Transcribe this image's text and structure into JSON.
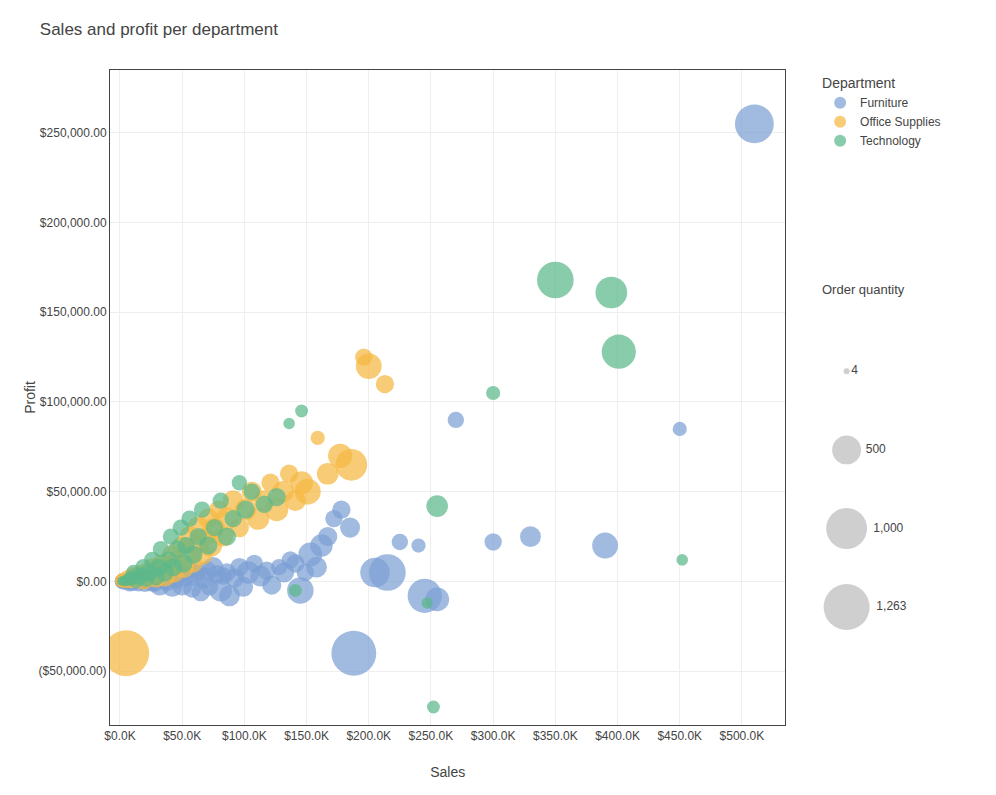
{
  "chart_data": {
    "type": "scatter",
    "title": "Sales and profit per department",
    "x_label": "Sales",
    "y_label": "Profit",
    "grid": true,
    "legend": "right",
    "legend_title": "Department",
    "xlim": [
      -8000,
      535000
    ],
    "ylim": [
      -80000,
      285000
    ],
    "xticks": [
      {
        "value": 0,
        "label": "$0.0K"
      },
      {
        "value": 50000,
        "label": "$50.0K"
      },
      {
        "value": 100000,
        "label": "$100.0K"
      },
      {
        "value": 150000,
        "label": "$150.0K"
      },
      {
        "value": 200000,
        "label": "$200.0K"
      },
      {
        "value": 250000,
        "label": "$250.0K"
      },
      {
        "value": 300000,
        "label": "$300.0K"
      },
      {
        "value": 350000,
        "label": "$350.0K"
      },
      {
        "value": 400000,
        "label": "$400.0K"
      },
      {
        "value": 450000,
        "label": "$450.0K"
      },
      {
        "value": 500000,
        "label": "$500.0K"
      }
    ],
    "yticks": [
      {
        "value": -50000,
        "label": "($50,000.00)"
      },
      {
        "value": 0,
        "label": "$0.00"
      },
      {
        "value": 50000,
        "label": "$50,000.00"
      },
      {
        "value": 100000,
        "label": "$100,000.00"
      },
      {
        "value": 150000,
        "label": "$150,000.00"
      },
      {
        "value": 200000,
        "label": "$200,000.00"
      },
      {
        "value": 250000,
        "label": "$250,000.00"
      }
    ],
    "size_legend": {
      "title": "Order quantity",
      "values": [
        4,
        500,
        {
          "value": 1000,
          "label": "1,000"
        },
        {
          "value": 1263,
          "label": "1,263"
        }
      ]
    },
    "series": [
      {
        "name": "Furniture",
        "color": "#7b9fd4",
        "x": [
          510000,
          450000,
          390000,
          330000,
          300000,
          270000,
          255000,
          245000,
          240000,
          225000,
          215000,
          205000,
          188000,
          185000,
          178000,
          172000,
          167000,
          162000,
          158000,
          153000,
          149000,
          145000,
          141000,
          137000,
          132000,
          128000,
          122000,
          118000,
          113000,
          108000,
          103000,
          99000,
          96000,
          92000,
          88000,
          86000,
          83000,
          81000,
          78000,
          75000,
          72000,
          70000,
          68000,
          65000,
          62000,
          60000,
          58000,
          55000,
          52000,
          50000,
          48000,
          45000,
          42000,
          40000,
          38000,
          35000,
          32000,
          30000,
          28000,
          25000,
          22000,
          20000,
          18000,
          15000,
          12000,
          10000,
          8000,
          6000,
          4000,
          2500,
          1500,
          1000,
          500
        ],
        "y": [
          255000,
          85000,
          20000,
          25000,
          22000,
          90000,
          -10000,
          -8000,
          20000,
          22000,
          5000,
          5000,
          -40000,
          30000,
          40000,
          35000,
          25000,
          20000,
          8000,
          15000,
          5000,
          -5000,
          10000,
          12000,
          5000,
          8000,
          -2000,
          6000,
          3000,
          10000,
          5000,
          -3000,
          8000,
          2000,
          -8000,
          5000,
          3000,
          -5000,
          4000,
          8000,
          -3000,
          6000,
          2000,
          -6000,
          5000,
          3000,
          -4000,
          7000,
          2000,
          -2000,
          4000,
          1000,
          -3000,
          3000,
          0,
          2000,
          -2000,
          1000,
          -1000,
          0,
          1000,
          -1000,
          2000,
          -500,
          1000,
          0,
          -500,
          500,
          0,
          -200,
          200,
          -100,
          100
        ],
        "sizes": [
          900,
          120,
          400,
          260,
          180,
          160,
          340,
          700,
          120,
          160,
          800,
          520,
          1200,
          240,
          200,
          180,
          220,
          300,
          260,
          340,
          180,
          420,
          200,
          180,
          240,
          160,
          220,
          200,
          260,
          180,
          300,
          240,
          200,
          220,
          260,
          200,
          180,
          300,
          200,
          240,
          180,
          220,
          260,
          200,
          180,
          240,
          200,
          220,
          180,
          260,
          200,
          180,
          240,
          200,
          220,
          180,
          260,
          200,
          180,
          240,
          200,
          180,
          260,
          200,
          180,
          220,
          200,
          180,
          160,
          140,
          120,
          100,
          80
        ]
      },
      {
        "name": "Office Supplies",
        "color": "#f5b942",
        "x": [
          5000,
          200000,
          213000,
          196000,
          186000,
          177000,
          167000,
          159000,
          151000,
          146000,
          141000,
          136000,
          131000,
          126000,
          121000,
          116000,
          111000,
          106000,
          101000,
          96000,
          91000,
          86000,
          83000,
          79000,
          76000,
          73000,
          71000,
          69000,
          66000,
          63000,
          61000,
          59000,
          56000,
          53000,
          51000,
          49000,
          46000,
          43000,
          41000,
          39000,
          36000,
          33000,
          31000,
          29000,
          26000,
          23000,
          21000,
          19000,
          16000,
          13000,
          11000,
          9000,
          7000,
          4500,
          2200,
          1100
        ],
        "y": [
          -40000,
          120000,
          110000,
          125000,
          65000,
          70000,
          60000,
          80000,
          50000,
          55000,
          45000,
          60000,
          50000,
          40000,
          55000,
          45000,
          35000,
          50000,
          40000,
          30000,
          45000,
          35000,
          25000,
          40000,
          30000,
          20000,
          35000,
          25000,
          15000,
          30000,
          20000,
          10000,
          25000,
          15000,
          8000,
          20000,
          12000,
          5000,
          15000,
          8000,
          3000,
          10000,
          5000,
          2000,
          8000,
          3000,
          5000,
          1000,
          4000,
          2000,
          3000,
          1000,
          2000,
          500,
          1000,
          200
        ],
        "sizes": [
          1263,
          400,
          200,
          180,
          600,
          350,
          280,
          120,
          400,
          320,
          260,
          200,
          280,
          320,
          200,
          260,
          300,
          240,
          280,
          220,
          260,
          300,
          240,
          200,
          260,
          300,
          240,
          200,
          260,
          300,
          240,
          200,
          260,
          220,
          280,
          200,
          240,
          260,
          200,
          220,
          260,
          200,
          240,
          220,
          200,
          260,
          200,
          240,
          200,
          220,
          200,
          180,
          160,
          140,
          120,
          100
        ]
      },
      {
        "name": "Technology",
        "color": "#5cb88a",
        "x": [
          350000,
          395000,
          401000,
          300000,
          255000,
          247000,
          252000,
          452000,
          146000,
          136000,
          126000,
          116000,
          106000,
          101000,
          96000,
          91000,
          86000,
          81000,
          76000,
          71000,
          66000,
          63000,
          59000,
          56000,
          53000,
          51000,
          49000,
          46000,
          43000,
          41000,
          39000,
          36000,
          33000,
          31000,
          29000,
          26000,
          23000,
          21000,
          19000,
          16000,
          13000,
          11000,
          9000,
          7000,
          4500,
          2200,
          1100,
          141000
        ],
        "y": [
          168000,
          161000,
          128000,
          105000,
          42000,
          -12000,
          -70000,
          12000,
          95000,
          88000,
          47000,
          43000,
          50000,
          40000,
          55000,
          35000,
          25000,
          45000,
          30000,
          20000,
          40000,
          25000,
          15000,
          35000,
          20000,
          10000,
          30000,
          18000,
          8000,
          25000,
          12000,
          5000,
          18000,
          8000,
          3000,
          12000,
          5000,
          2000,
          8000,
          3000,
          1000,
          5000,
          2000,
          1000,
          500,
          200,
          100,
          -5000
        ],
        "sizes": [
          800,
          600,
          700,
          120,
          280,
          80,
          100,
          80,
          100,
          80,
          200,
          180,
          160,
          200,
          140,
          180,
          200,
          160,
          180,
          200,
          160,
          180,
          200,
          160,
          180,
          200,
          160,
          180,
          200,
          160,
          180,
          200,
          160,
          180,
          200,
          160,
          180,
          200,
          160,
          180,
          160,
          140,
          120,
          100,
          80,
          60,
          40,
          100
        ]
      }
    ]
  }
}
